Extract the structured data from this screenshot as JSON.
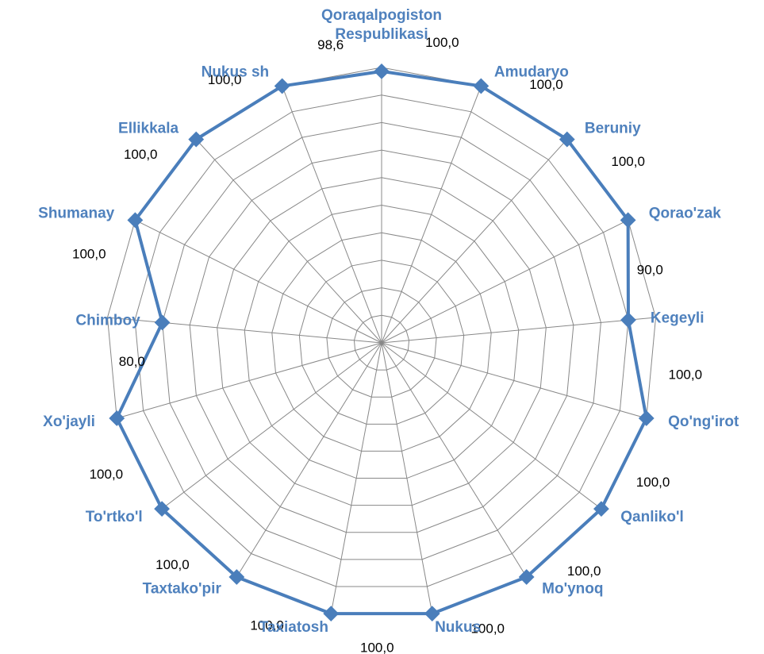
{
  "chart_data": {
    "type": "radar",
    "categories": [
      "Qoraqalpogiston Respublikasi",
      "Amudaryo",
      "Beruniy",
      "Qorao'zak",
      "Kegeyli",
      "Qo'ng'irot",
      "Qanliko'l",
      "Mo'ynoq",
      "Nukus",
      "Taxiatosh",
      "Taxtako'pir",
      "To'rtko'l",
      "Xo'jayli",
      "Chimboy",
      "Shumanay",
      "Ellikkala",
      "Nukus sh"
    ],
    "series": [
      {
        "color": "#4a7ebb",
        "values": [
          98.6,
          100,
          100,
          100,
          90,
          100,
          100,
          100,
          100,
          100,
          100,
          100,
          100,
          80,
          100,
          100,
          100
        ],
        "value_labels": [
          "98,6",
          "100,0",
          "100,0",
          "100,0",
          "90,0",
          "100,0",
          "100,0",
          "100,0",
          "100,0",
          "100,0",
          "100,0",
          "100,0",
          "100,0",
          "80,0",
          "100,0",
          "100,0",
          "100,0"
        ]
      }
    ],
    "ylim": [
      0,
      100
    ],
    "yticks": [
      0,
      10,
      20,
      30,
      40,
      50,
      60,
      70,
      80,
      90,
      100
    ],
    "grid": true
  }
}
